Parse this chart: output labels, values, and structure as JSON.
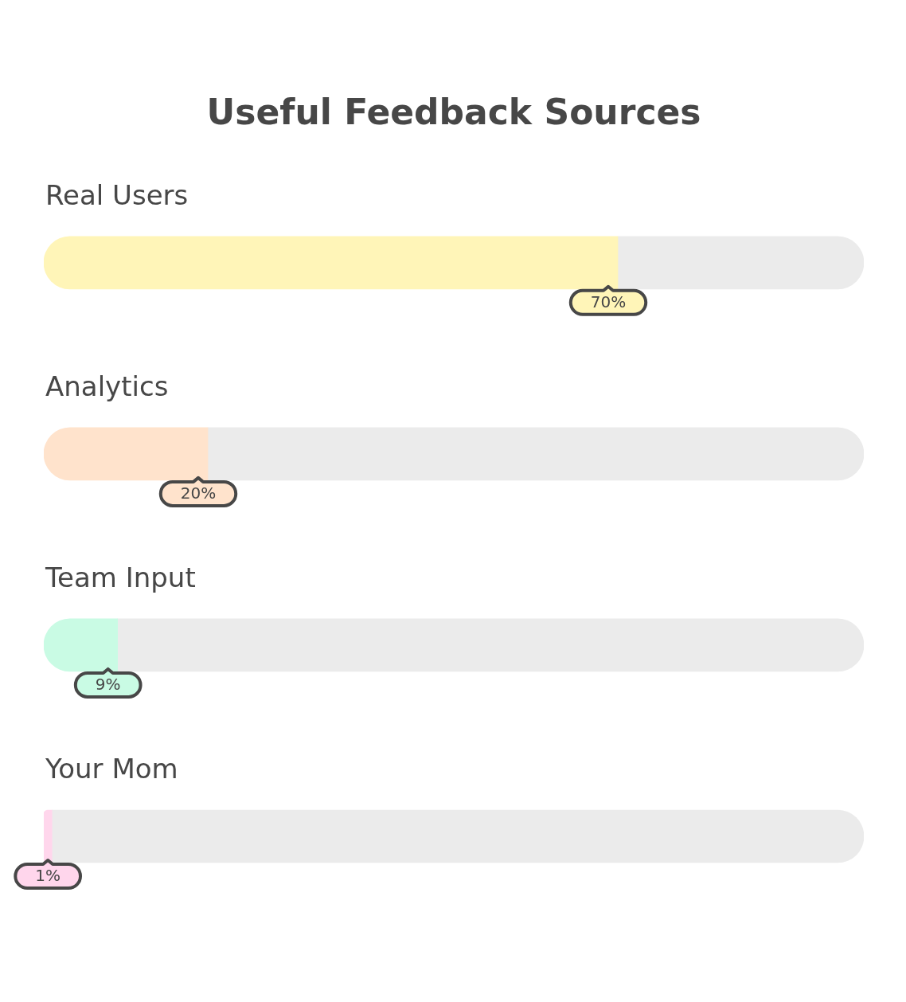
{
  "chart_data": {
    "type": "bar",
    "orientation": "horizontal",
    "stacked": true,
    "title": "Useful Feedback Sources",
    "categories": [
      "Real Users",
      "Analytics",
      "Team Input",
      "Your Mom"
    ],
    "series": [
      {
        "values": [
          70,
          20,
          9,
          1
        ],
        "colors": [
          "#fff5b8",
          "#ffe3cc",
          "#c9fbe4",
          "#ffd6ec"
        ],
        "value_labels": [
          "70%",
          "20%",
          "9%",
          "1%"
        ]
      },
      {
        "values": [
          30,
          80,
          91,
          99
        ],
        "color": "#ebebeb"
      }
    ],
    "legend": false
  }
}
